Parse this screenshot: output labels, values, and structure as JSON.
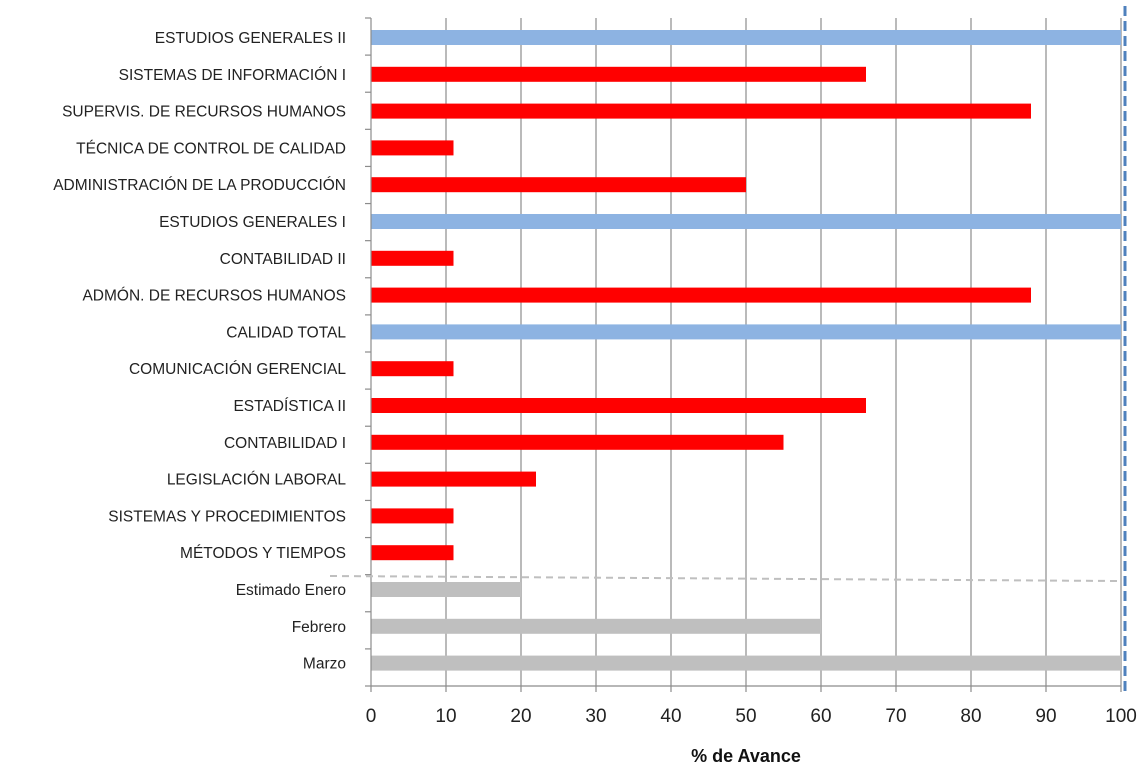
{
  "chart_data": {
    "type": "bar",
    "orientation": "horizontal",
    "xlabel": "% de Avance",
    "xlim": [
      0,
      100
    ],
    "xticks": [
      "0",
      "10",
      "20",
      "30",
      "40",
      "50",
      "60",
      "70",
      "80",
      "90",
      "100"
    ],
    "grid": "vertical gridlines",
    "colors": {
      "completed": "#8db3e2",
      "in_progress": "#ff0000",
      "estimate": "#bfbfbf",
      "target_line": "#4f81bd",
      "separator": "#bfbfbf"
    },
    "bars": [
      {
        "label": "ESTUDIOS GENERALES II",
        "value": 100,
        "kind": "completed"
      },
      {
        "label": "SISTEMAS DE INFORMACIÓN I",
        "value": 66,
        "kind": "in_progress"
      },
      {
        "label": "SUPERVIS. DE  RECURSOS HUMANOS",
        "value": 88,
        "kind": "in_progress"
      },
      {
        "label": "TÉCNICA DE CONTROL DE CALIDAD",
        "value": 11,
        "kind": "in_progress"
      },
      {
        "label": "ADMINISTRACIÓN DE LA PRODUCCIÓN",
        "value": 50,
        "kind": "in_progress"
      },
      {
        "label": "ESTUDIOS GENERALES I",
        "value": 100,
        "kind": "completed"
      },
      {
        "label": "CONTABILIDAD II",
        "value": 11,
        "kind": "in_progress"
      },
      {
        "label": "ADMÓN. DE RECURSOS HUMANOS",
        "value": 88,
        "kind": "in_progress"
      },
      {
        "label": "CALIDAD TOTAL",
        "value": 100,
        "kind": "completed"
      },
      {
        "label": "COMUNICACIÓN GERENCIAL",
        "value": 11,
        "kind": "in_progress"
      },
      {
        "label": "ESTADÍSTICA II",
        "value": 66,
        "kind": "in_progress"
      },
      {
        "label": "CONTABILIDAD I",
        "value": 55,
        "kind": "in_progress"
      },
      {
        "label": "LEGISLACIÓN LABORAL",
        "value": 22,
        "kind": "in_progress"
      },
      {
        "label": "SISTEMAS Y PROCEDIMIENTOS",
        "value": 11,
        "kind": "in_progress"
      },
      {
        "label": "MÉTODOS Y TIEMPOS",
        "value": 11,
        "kind": "in_progress"
      },
      {
        "label": "Estimado Enero",
        "value": 20,
        "kind": "estimate"
      },
      {
        "label": "Febrero",
        "value": 60,
        "kind": "estimate"
      },
      {
        "label": "Marzo",
        "value": 100,
        "kind": "estimate"
      }
    ],
    "target_line_value": 100
  }
}
